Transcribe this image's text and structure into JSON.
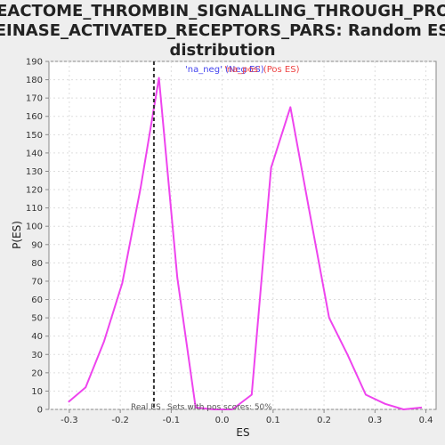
{
  "chart_data": {
    "type": "line",
    "title_lines": [
      "REACTOME_THROMBIN_SIGNALLING_THROUGH_PROT",
      "EINASE_ACTIVATED_RECEPTORS_PARS: Random ES",
      "distribution"
    ],
    "xlabel": "ES",
    "ylabel": "P(ES)",
    "xlim": [
      -0.34,
      0.42
    ],
    "ylim": [
      0,
      190
    ],
    "x_ticks": [
      -0.3,
      -0.2,
      -0.1,
      0.0,
      0.1,
      0.2,
      0.3,
      0.4
    ],
    "x_tick_labels": [
      "-0.3",
      "-0.2",
      "-0.1",
      "0.0",
      "0.1",
      "0.2",
      "0.3",
      "0.4"
    ],
    "y_ticks": [
      0,
      10,
      20,
      30,
      40,
      50,
      60,
      70,
      80,
      90,
      100,
      110,
      120,
      130,
      140,
      150,
      160,
      170,
      180,
      190
    ],
    "y_tick_labels": [
      "0",
      "10",
      "20",
      "30",
      "40",
      "50",
      "60",
      "70",
      "80",
      "90",
      "100",
      "110",
      "120",
      "130",
      "140",
      "150",
      "160",
      "170",
      "180",
      "190"
    ],
    "grid": true,
    "series": [
      {
        "color": "#ee44ee",
        "x": [
          -0.302,
          -0.268,
          -0.232,
          -0.196,
          -0.16,
          -0.124,
          -0.088,
          -0.052,
          -0.016,
          0.02,
          0.058,
          0.096,
          0.134,
          0.172,
          0.21,
          0.246,
          0.282,
          0.32,
          0.356,
          0.392
        ],
        "y": [
          4,
          12,
          37,
          69,
          121,
          181,
          72,
          1,
          0,
          0,
          8,
          132,
          165,
          107,
          50,
          30,
          8,
          3,
          0,
          1
        ]
      }
    ],
    "real_es_line": {
      "x": -0.134,
      "color": "#333333"
    },
    "legend": {
      "placement": "top-center",
      "entries": [
        {
          "label": "'na_neg' (Neg ES)",
          "color": "#4444ee"
        },
        {
          "label": "'na_pos' (Pos ES)",
          "color": "#ee4444"
        }
      ]
    },
    "annotations": [
      {
        "text": "Real ES",
        "color": "#555555"
      },
      {
        "text": "Sets with pos scores: 50%",
        "color": "#555555"
      }
    ],
    "colors": {
      "background": "#eeeeee",
      "plot_background": "#ffffff",
      "grid": "#dddddd",
      "axis": "#888888"
    }
  }
}
